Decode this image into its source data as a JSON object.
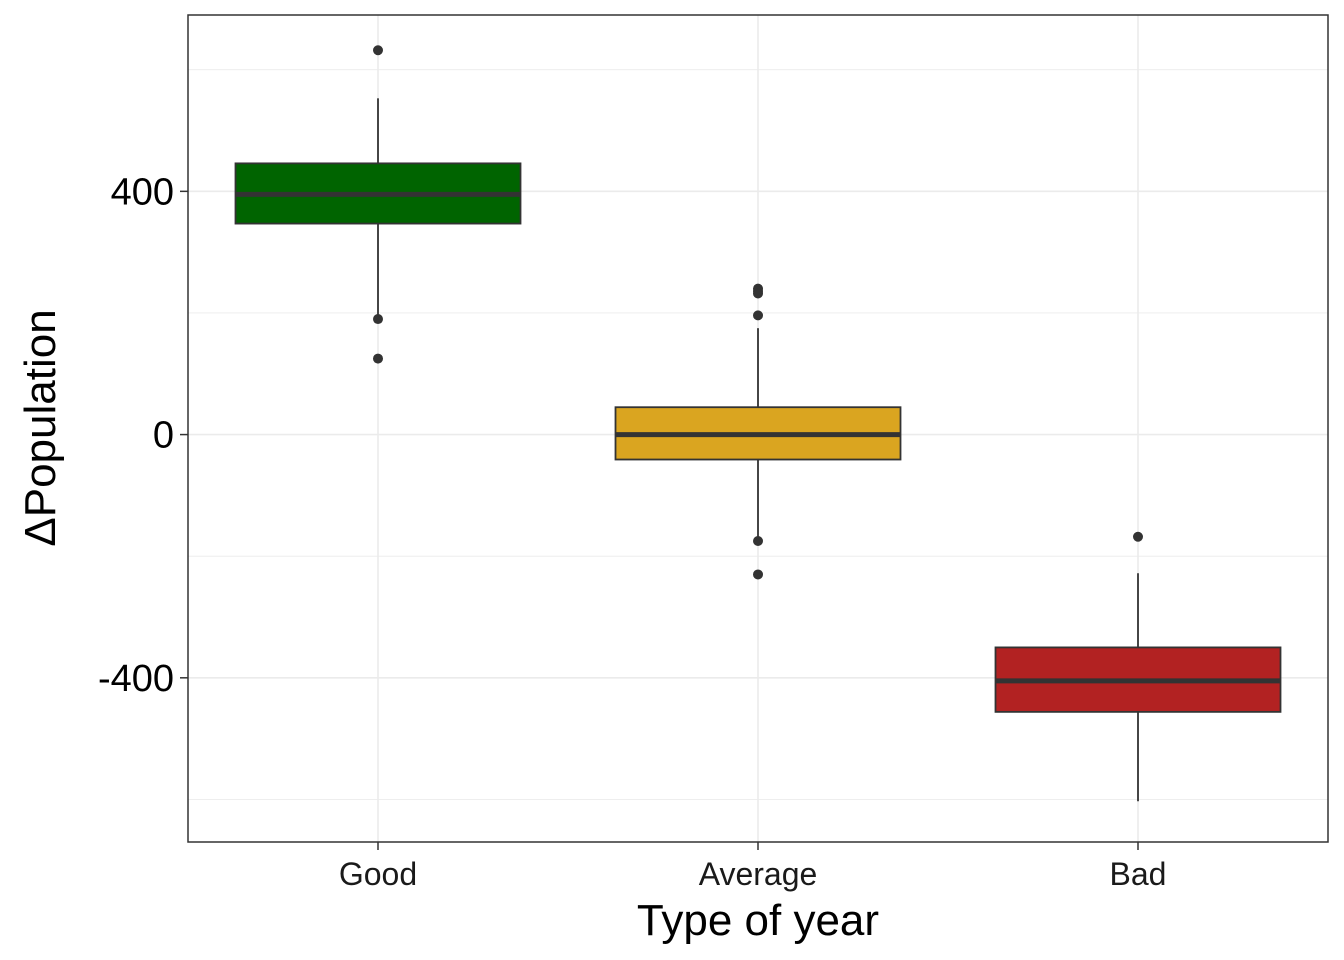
{
  "chart_data": {
    "type": "boxplot",
    "title": "",
    "xlabel": "Type of year",
    "ylabel": "ΔPopulation",
    "ylim": [
      -670,
      690
    ],
    "y_ticks": [
      400,
      0,
      -400
    ],
    "y_tick_labels": [
      "400",
      "0",
      "-400"
    ],
    "grid": true,
    "legend": "none",
    "categories": [
      "Good",
      "Average",
      "Bad"
    ],
    "boxes": [
      {
        "category": "Good",
        "color": "#006400",
        "whisker_low": 190,
        "q1": 347,
        "median": 395,
        "q3": 446,
        "whisker_high": 553,
        "outliers": [
          632,
          190,
          125
        ]
      },
      {
        "category": "Average",
        "color": "#DAA520",
        "whisker_low": -168,
        "q1": -41,
        "median": 0,
        "q3": 45,
        "whisker_high": 175,
        "outliers": [
          240,
          236,
          232,
          196,
          -175,
          -230
        ]
      },
      {
        "category": "Bad",
        "color": "#B22222",
        "whisker_low": -603,
        "q1": -456,
        "median": -405,
        "q3": -350,
        "whisker_high": -228,
        "outliers": [
          -168
        ]
      }
    ]
  }
}
